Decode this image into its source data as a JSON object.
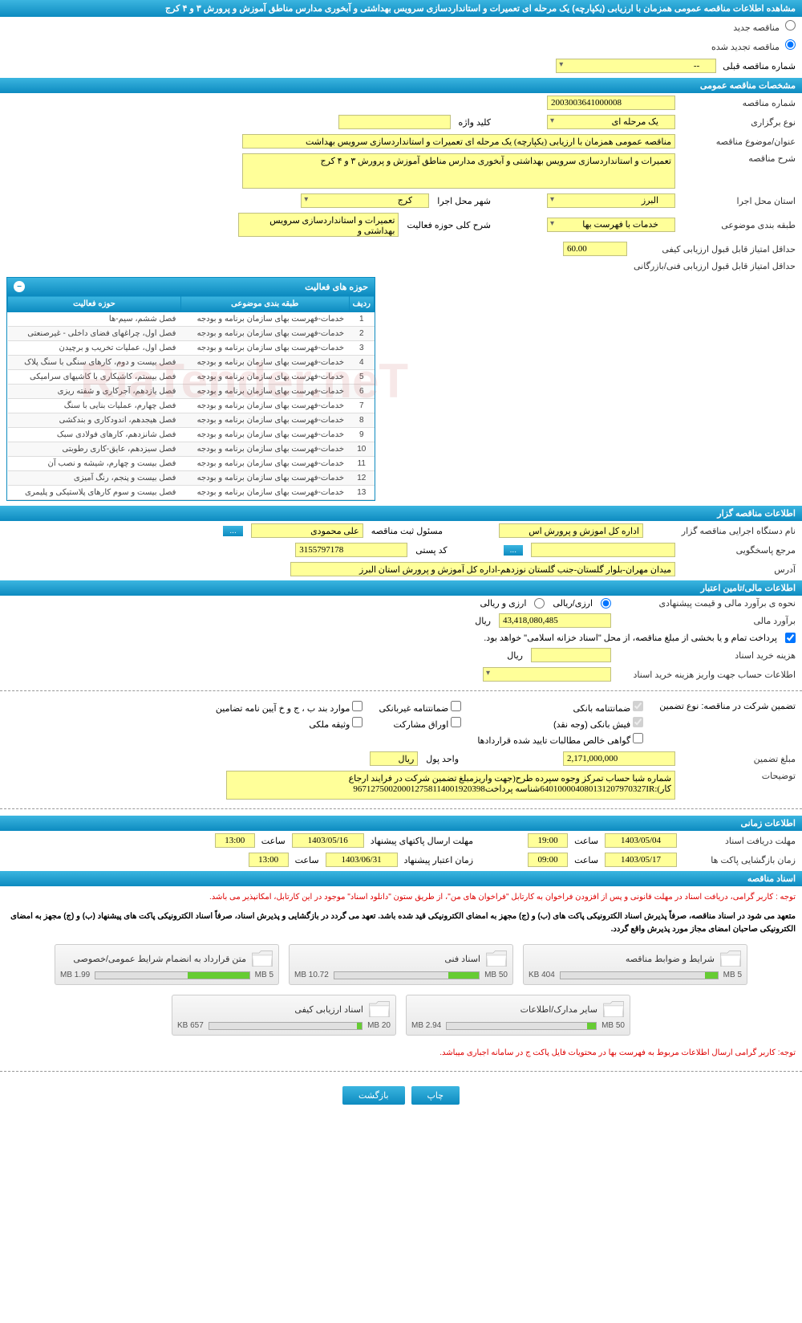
{
  "page_title": "مشاهده اطلاعات مناقصه عمومی همزمان با ارزیابی (یکپارچه) یک مرحله ای تعمیرات و استانداردسازی سرویس بهداشتی و آبخوری مدارس مناطق آموزش و پرورش ۳ و ۴ کرج",
  "radio_new": "مناقصه جدید",
  "radio_renew": "مناقصه تجدید شده",
  "prev_tender_label": "شماره مناقصه قبلی",
  "prev_tender_value": "--",
  "sections": {
    "general": "مشخصات مناقصه عمومی",
    "holder": "اطلاعات مناقصه گزار",
    "finance": "اطلاعات مالی/تامین اعتبار",
    "time": "اطلاعات زمانی",
    "docs": "اسناد مناقصه"
  },
  "general": {
    "tender_no_label": "شماره مناقصه",
    "tender_no": "2003003641000008",
    "type_label": "نوع برگزاری",
    "type": "یک مرحله ای",
    "keyword_label": "کلید واژه",
    "keyword": "",
    "subject_label": "عنوان/موضوع مناقصه",
    "subject": "مناقصه عمومی همزمان با ارزیابی (یکپارچه) یک مرحله ای تعمیرات و استانداردسازی سرویس بهداشت",
    "desc_label": "شرح مناقصه",
    "desc": "تعمیرات و استانداردسازی سرویس بهداشتی و آبخوری مدارس مناطق آموزش و پرورش ۳ و ۴ کرج",
    "province_label": "استان محل اجرا",
    "province": "البرز",
    "city_label": "شهر محل اجرا",
    "city": "کرج",
    "category_label": "طبقه بندی موضوعی",
    "category": "خدمات با فهرست بها",
    "activity_desc_label": "شرح کلی حوزه فعالیت",
    "activity_desc": "تعمیرات و استانداردسازی سرویس بهداشتی و",
    "min_score_label": "حداقل امتیاز قابل قبول ارزیابی کیفی",
    "min_score": "60.00",
    "min_tech_label": "حداقل امتیاز قابل قبول ارزیابی فنی/بازرگانی"
  },
  "activity_panel": {
    "title": "حوزه های فعالیت",
    "col_row": "ردیف",
    "col_category": "طبقه بندی موضوعی",
    "col_activity": "حوزه فعالیت",
    "rows": [
      {
        "n": "1",
        "cat": "خدمات-فهرست بهای سازمان برنامه و بودجه",
        "act": "فصل ششم، سیم-ها"
      },
      {
        "n": "2",
        "cat": "خدمات-فهرست بهای سازمان برنامه و بودجه",
        "act": "فصل اول، چراغهای فضای داخلی - غیرصنعتی"
      },
      {
        "n": "3",
        "cat": "خدمات-فهرست بهای سازمان برنامه و بودجه",
        "act": "فصل اول، عملیات تخریب و برچیدن"
      },
      {
        "n": "4",
        "cat": "خدمات-فهرست بهای سازمان برنامه و بودجه",
        "act": "فصل بیست و دوم، کارهای سنگی با سنگ پلاک"
      },
      {
        "n": "5",
        "cat": "خدمات-فهرست بهای سازمان برنامه و بودجه",
        "act": "فصل بیستم، کاشیکاری با کاشیهای سرامیکی"
      },
      {
        "n": "6",
        "cat": "خدمات-فهرست بهای سازمان برنامه و بودجه",
        "act": "فصل یازدهم، آجرکاری و شفته ریزی"
      },
      {
        "n": "7",
        "cat": "خدمات-فهرست بهای سازمان برنامه و بودجه",
        "act": "فصل چهارم، عملیات بنایی با سنگ"
      },
      {
        "n": "8",
        "cat": "خدمات-فهرست بهای سازمان برنامه و بودجه",
        "act": "فصل هیجدهم، اندودکاری و بندکشی"
      },
      {
        "n": "9",
        "cat": "خدمات-فهرست بهای سازمان برنامه و بودجه",
        "act": "فصل شانزدهم، کارهای فولادی سبک"
      },
      {
        "n": "10",
        "cat": "خدمات-فهرست بهای سازمان برنامه و بودجه",
        "act": "فصل سیزدهم، عایق-کاری رطوبتی"
      },
      {
        "n": "11",
        "cat": "خدمات-فهرست بهای سازمان برنامه و بودجه",
        "act": "فصل بیست و چهارم، شیشه و نصب آن"
      },
      {
        "n": "12",
        "cat": "خدمات-فهرست بهای سازمان برنامه و بودجه",
        "act": "فصل بیست و پنجم، رنگ آمیزی"
      },
      {
        "n": "13",
        "cat": "خدمات-فهرست بهای سازمان برنامه و بودجه",
        "act": "فصل بیست و سوم کارهای پلاستیکی و پلیمری"
      }
    ]
  },
  "holder": {
    "org_label": "نام دستگاه اجرایی مناقصه گزار",
    "org": "اداره کل اموزش و پرورش اس",
    "resp_label": "مسئول ثبت مناقصه",
    "resp": "علی محمودی",
    "contact_label": "مرجع پاسخگویی",
    "contact_btn": "...",
    "postal_label": "کد پستی",
    "postal": "3155797178",
    "address_label": "آدرس",
    "address": "میدان مهران-بلوار گلستان-جنب گلستان نوزدهم-اداره کل آموزش و پرورش استان البرز"
  },
  "finance": {
    "method_label": "نحوه ی برآورد مالی و قیمت پیشنهادی",
    "method_rial": "ارزی/ریالی",
    "method_both": "ارزی و ریالی",
    "estimate_label": "برآورد مالی",
    "estimate": "43,418,080,485",
    "rial": "ریال",
    "note1": "پرداخت تمام و یا بخشی از مبلغ مناقصه، از محل \"اسناد خزانه اسلامی\" خواهد بود.",
    "doc_fee_label": "هزینه خرید اسناد",
    "doc_fee": "",
    "account_label": "اطلاعات حساب جهت واریز هزینه خرید اسناد"
  },
  "guarantee": {
    "title": "تضمین شرکت در مناقصه:    نوع تضمین",
    "bank": "ضمانتنامه بانکی",
    "nonbank": "ضمانتنامه غیربانکی",
    "bonds": "موارد بند ب ، ج و خ آیین نامه تضامین",
    "cash": "فیش بانکی (وجه نقد)",
    "shares": "اوراق مشارکت",
    "property": "وثیقه ملکی",
    "receivables": "گواهی خالص مطالبات تایید شده قراردادها",
    "amount_label": "مبلغ تضمین",
    "amount": "2,171,000,000",
    "unit_label": "واحد پول",
    "unit": "ریال",
    "notes_label": "توضیحات",
    "notes": "شماره شبا حساب تمرکز وجوه سپرده طرح(جهت واریزمبلغ تضمین شرکت در فرایند ارجاع کار):640100004080131207970327IRشناسه پرداخت967127500200012758114001920398"
  },
  "time": {
    "doc_deadline_label": "مهلت دریافت اسناد",
    "doc_deadline_date": "1403/05/04",
    "doc_deadline_time": "19:00",
    "offer_deadline_label": "مهلت ارسال پاکتهای پیشنهاد",
    "offer_deadline_date": "1403/05/16",
    "offer_deadline_time": "13:00",
    "open_label": "زمان بازگشایی پاکت ها",
    "open_date": "1403/05/17",
    "open_time": "09:00",
    "validity_label": "زمان اعتبار پیشنهاد",
    "validity_date": "1403/06/31",
    "validity_time": "13:00",
    "time_label": "ساعت"
  },
  "docs": {
    "note1": "توجه : کاربر گرامی، دریافت اسناد در مهلت قانونی و پس از افزودن فراخوان به کارتابل \"فراخوان های من\"، از طریق ستون \"دانلود اسناد\" موجود در این کارتابل، امکانپذیر می باشد.",
    "note2": "متعهد می شود در اسناد مناقصه، صرفاً پذیرش اسناد الکترونیکی پاکت های (ب) و (ج) مجهز به امضای الکترونیکی قید شده باشد. تعهد می گردد در بازگشایی و پذیرش اسناد، صرفاً اسناد الکترونیکی پاکت های پیشنهاد (ب) و (ج) مجهز به امضای الکترونیکی صاحبان امضای مجاز مورد پذیرش واقع گردد.",
    "cards": [
      {
        "title": "شرایط و ضوابط مناقصه",
        "size": "404 KB",
        "max": "5 MB",
        "pct": 8
      },
      {
        "title": "اسناد فنی",
        "size": "10.72 MB",
        "max": "50 MB",
        "pct": 21
      },
      {
        "title": "متن قرارداد به انضمام شرایط عمومی/خصوصی",
        "size": "1.99 MB",
        "max": "5 MB",
        "pct": 40
      },
      {
        "title": "سایر مدارک/اطلاعات",
        "size": "2.94 MB",
        "max": "50 MB",
        "pct": 6
      },
      {
        "title": "اسناد ارزیابی کیفی",
        "size": "657 KB",
        "max": "20 MB",
        "pct": 3
      }
    ],
    "bottom_note": "توجه: کاربر گرامی ارسال اطلاعات مربوط به فهرست بها در محتویات فایل پاکت ج در سامانه اجباری میباشد."
  },
  "buttons": {
    "print": "چاپ",
    "back": "بازگشت"
  },
  "watermark": "RiaTender.neT"
}
